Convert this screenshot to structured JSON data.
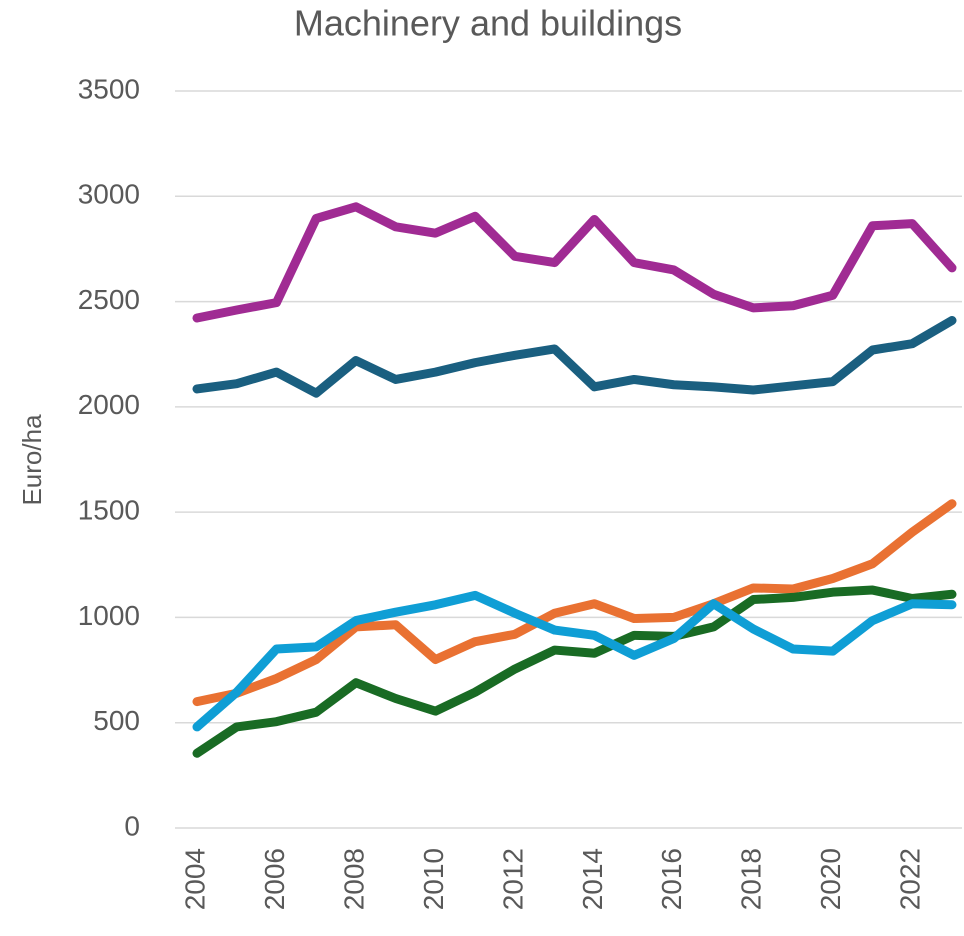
{
  "chart_data": {
    "type": "line",
    "title": "Machinery and buildings",
    "y_label": "Euro/ha",
    "x": [
      2004,
      2005,
      2006,
      2007,
      2008,
      2009,
      2010,
      2011,
      2012,
      2013,
      2014,
      2015,
      2016,
      2017,
      2018,
      2019,
      2020,
      2021,
      2022,
      2023
    ],
    "xlim": [
      2004,
      2023
    ],
    "xticks": [
      2004,
      2006,
      2008,
      2010,
      2012,
      2014,
      2016,
      2018,
      2020,
      2022
    ],
    "ylim": [
      0,
      3500
    ],
    "yticks": [
      0,
      500,
      1000,
      1500,
      2000,
      2500,
      3000,
      3500
    ],
    "grid": true,
    "series": [
      {
        "color": "#a02b93",
        "values": [
          2422,
          2460,
          2495,
          2895,
          2950,
          2855,
          2825,
          2905,
          2715,
          2685,
          2890,
          2685,
          2650,
          2535,
          2470,
          2480,
          2530,
          2860,
          2870,
          2660
        ]
      },
      {
        "color": "#1a5f80",
        "values": [
          2085,
          2110,
          2165,
          2065,
          2220,
          2130,
          2165,
          2210,
          2245,
          2275,
          2095,
          2130,
          2105,
          2095,
          2080,
          2100,
          2120,
          2270,
          2300,
          2410
        ]
      },
      {
        "color": "#e97132",
        "values": [
          600,
          640,
          710,
          800,
          955,
          965,
          800,
          885,
          920,
          1020,
          1065,
          995,
          1000,
          1065,
          1140,
          1135,
          1185,
          1255,
          1405,
          1540
        ]
      },
      {
        "color": "#196b24",
        "values": [
          355,
          480,
          505,
          550,
          690,
          615,
          555,
          645,
          755,
          845,
          830,
          915,
          910,
          955,
          1085,
          1095,
          1120,
          1130,
          1090,
          1110
        ]
      },
      {
        "color": "#0f9ed5",
        "values": [
          480,
          645,
          850,
          860,
          985,
          1025,
          1060,
          1105,
          1020,
          940,
          915,
          820,
          900,
          1065,
          945,
          850,
          840,
          985,
          1065,
          1060
        ]
      }
    ]
  }
}
